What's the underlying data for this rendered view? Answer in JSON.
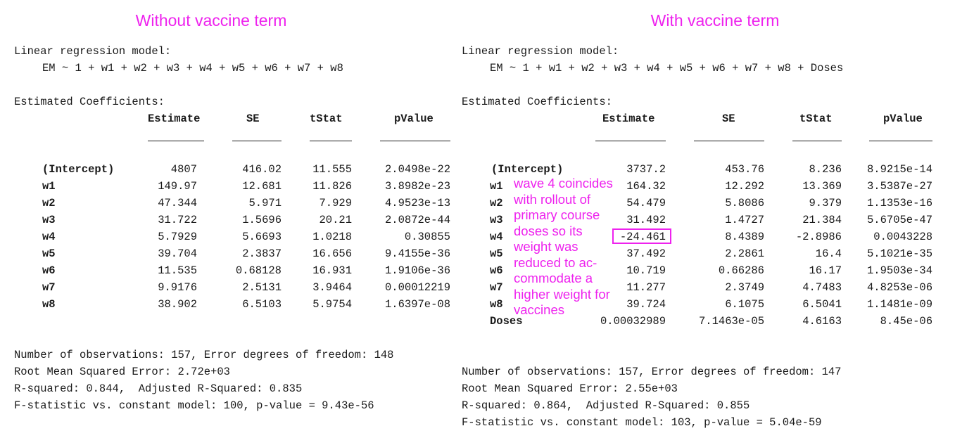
{
  "left": {
    "heading": "Without vaccine term",
    "model_label": "Linear regression model:",
    "formula": "EM ~ 1 + w1 + w2 + w3 + w4 + w5 + w6 + w7 + w8",
    "coef_title": "Estimated Coefficients:",
    "columns": [
      "Estimate",
      "SE",
      "tStat",
      "pValue"
    ],
    "rows": [
      {
        "name": "(Intercept)",
        "cells": [
          "4807",
          "416.02",
          "11.555",
          "2.0498e-22"
        ]
      },
      {
        "name": "w1",
        "cells": [
          "149.97",
          "12.681",
          "11.826",
          "3.8982e-23"
        ]
      },
      {
        "name": "w2",
        "cells": [
          "47.344",
          "5.971",
          "7.929",
          "4.9523e-13"
        ]
      },
      {
        "name": "w3",
        "cells": [
          "31.722",
          "1.5696",
          "20.21",
          "2.0872e-44"
        ]
      },
      {
        "name": "w4",
        "cells": [
          "5.7929",
          "5.6693",
          "1.0218",
          "0.30855"
        ]
      },
      {
        "name": "w5",
        "cells": [
          "39.704",
          "2.3837",
          "16.656",
          "9.4155e-36"
        ]
      },
      {
        "name": "w6",
        "cells": [
          "11.535",
          "0.68128",
          "16.931",
          "1.9106e-36"
        ]
      },
      {
        "name": "w7",
        "cells": [
          "9.9176",
          "2.5131",
          "3.9464",
          "0.00012219"
        ]
      },
      {
        "name": "w8",
        "cells": [
          "38.902",
          "6.5103",
          "5.9754",
          "1.6397e-08"
        ]
      }
    ],
    "footer": [
      "Number of observations: 157, Error degrees of freedom: 148",
      "Root Mean Squared Error: 2.72e+03",
      "R-squared: 0.844,  Adjusted R-Squared: 0.835",
      "F-statistic vs. constant model: 100, p-value = 9.43e-56"
    ]
  },
  "right": {
    "heading": "With vaccine term",
    "model_label": "Linear regression model:",
    "formula": "EM ~ 1 + w1 + w2 + w3 + w4 + w5 + w6 + w7 + w8 + Doses",
    "coef_title": "Estimated Coefficients:",
    "columns": [
      "Estimate",
      "SE",
      "tStat",
      "pValue"
    ],
    "rows": [
      {
        "name": "(Intercept)",
        "cells": [
          "3737.2",
          "453.76",
          "8.236",
          "8.9215e-14"
        ]
      },
      {
        "name": "w1",
        "cells": [
          "164.32",
          "12.292",
          "13.369",
          "3.5387e-27"
        ]
      },
      {
        "name": "w2",
        "cells": [
          "54.479",
          "5.8086",
          "9.379",
          "1.1353e-16"
        ]
      },
      {
        "name": "w3",
        "cells": [
          "31.492",
          "1.4727",
          "21.384",
          "5.6705e-47"
        ]
      },
      {
        "name": "w4",
        "cells": [
          "-24.461",
          "8.4389",
          "-2.8986",
          "0.0043228"
        ]
      },
      {
        "name": "w5",
        "cells": [
          "37.492",
          "2.2861",
          "16.4",
          "5.1021e-35"
        ]
      },
      {
        "name": "w6",
        "cells": [
          "10.719",
          "0.66286",
          "16.17",
          "1.9503e-34"
        ]
      },
      {
        "name": "w7",
        "cells": [
          "11.277",
          "2.3749",
          "4.7483",
          "4.8253e-06"
        ]
      },
      {
        "name": "w8",
        "cells": [
          "39.724",
          "6.1075",
          "6.5041",
          "1.1481e-09"
        ]
      },
      {
        "name": "Doses",
        "cells": [
          "0.00032989",
          "7.1463e-05",
          "4.6163",
          "8.45e-06"
        ]
      }
    ],
    "footer": [
      "Number of observations: 157, Error degrees of freedom: 147",
      "Root Mean Squared Error: 2.55e+03",
      "R-squared: 0.864,  Adjusted R-Squared: 0.855",
      "F-statistic vs. constant model: 103, p-value = 5.04e-59"
    ]
  },
  "annotation": {
    "text": "wave 4 coincides\nwith rollout of\nprimary course\ndoses so its\nweight was\nreduced to ac-\ncommodate a\nhigher weight for\nvaccines",
    "color": "#ee22ee"
  }
}
